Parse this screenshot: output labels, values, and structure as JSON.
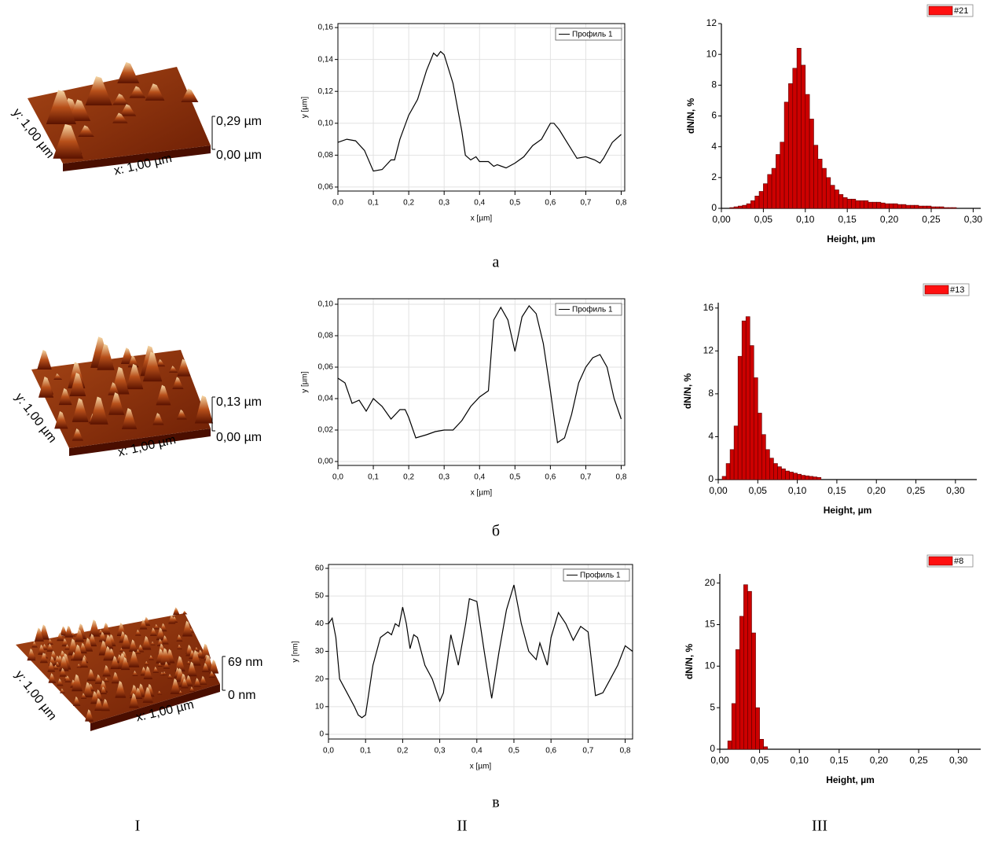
{
  "chart_data": [
    {
      "type": "line",
      "xlabel": "x [µm]",
      "ylabel": "y [µm]",
      "grid": true,
      "xlim": [
        0,
        0.81
      ],
      "ylim": [
        0.0575,
        0.1625
      ],
      "xticks": [
        {
          "value": 0,
          "label": "0,0"
        },
        {
          "value": 0.1,
          "label": "0,1"
        },
        {
          "value": 0.2,
          "label": "0,2"
        },
        {
          "value": 0.3,
          "label": "0,3"
        },
        {
          "value": 0.4,
          "label": "0,4"
        },
        {
          "value": 0.5,
          "label": "0,5"
        },
        {
          "value": 0.6,
          "label": "0,6"
        },
        {
          "value": 0.7,
          "label": "0,7"
        },
        {
          "value": 0.8,
          "label": "0,8"
        }
      ],
      "yticks": [
        {
          "value": 0.06,
          "label": "0,06"
        },
        {
          "value": 0.08,
          "label": "0,08"
        },
        {
          "value": 0.1,
          "label": "0,10"
        },
        {
          "value": 0.12,
          "label": "0,12"
        },
        {
          "value": 0.14,
          "label": "0,14"
        },
        {
          "value": 0.16,
          "label": "0,16"
        }
      ],
      "x": [
        0,
        0.025,
        0.05,
        0.075,
        0.1,
        0.125,
        0.15,
        0.16,
        0.175,
        0.2,
        0.225,
        0.25,
        0.27,
        0.28,
        0.29,
        0.3,
        0.325,
        0.35,
        0.36,
        0.375,
        0.39,
        0.4,
        0.425,
        0.44,
        0.45,
        0.475,
        0.5,
        0.525,
        0.55,
        0.575,
        0.6,
        0.61,
        0.625,
        0.65,
        0.675,
        0.7,
        0.725,
        0.74,
        0.75,
        0.775,
        0.8
      ],
      "series": [
        {
          "name": "Профиль 1",
          "color": "#000000",
          "values": [
            0.088,
            0.09,
            0.089,
            0.083,
            0.07,
            0.071,
            0.077,
            0.077,
            0.09,
            0.105,
            0.115,
            0.133,
            0.144,
            0.142,
            0.145,
            0.143,
            0.125,
            0.095,
            0.08,
            0.077,
            0.079,
            0.076,
            0.076,
            0.073,
            0.074,
            0.072,
            0.075,
            0.079,
            0.086,
            0.09,
            0.1,
            0.1,
            0.096,
            0.087,
            0.078,
            0.079,
            0.077,
            0.075,
            0.078,
            0.088,
            0.093
          ]
        }
      ]
    },
    {
      "type": "line",
      "xlabel": "x [µm]",
      "ylabel": "y [µm]",
      "grid": true,
      "xlim": [
        0,
        0.81
      ],
      "ylim": [
        -0.0025,
        0.1035
      ],
      "xticks": [
        {
          "value": 0,
          "label": "0,0"
        },
        {
          "value": 0.1,
          "label": "0,1"
        },
        {
          "value": 0.2,
          "label": "0,2"
        },
        {
          "value": 0.3,
          "label": "0,3"
        },
        {
          "value": 0.4,
          "label": "0,4"
        },
        {
          "value": 0.5,
          "label": "0,5"
        },
        {
          "value": 0.6,
          "label": "0,6"
        },
        {
          "value": 0.7,
          "label": "0,7"
        },
        {
          "value": 0.8,
          "label": "0,8"
        }
      ],
      "yticks": [
        {
          "value": 0,
          "label": "0,00"
        },
        {
          "value": 0.02,
          "label": "0,02"
        },
        {
          "value": 0.04,
          "label": "0,04"
        },
        {
          "value": 0.06,
          "label": "0,06"
        },
        {
          "value": 0.08,
          "label": "0,08"
        },
        {
          "value": 0.1,
          "label": "0,10"
        }
      ],
      "x": [
        0,
        0.02,
        0.04,
        0.06,
        0.08,
        0.1,
        0.125,
        0.15,
        0.175,
        0.19,
        0.2,
        0.22,
        0.25,
        0.275,
        0.3,
        0.325,
        0.35,
        0.375,
        0.4,
        0.425,
        0.44,
        0.46,
        0.48,
        0.5,
        0.52,
        0.54,
        0.56,
        0.58,
        0.6,
        0.62,
        0.64,
        0.66,
        0.68,
        0.7,
        0.72,
        0.74,
        0.76,
        0.78,
        0.8
      ],
      "series": [
        {
          "name": "Профиль 1",
          "color": "#000000",
          "values": [
            0.053,
            0.05,
            0.037,
            0.039,
            0.032,
            0.04,
            0.035,
            0.027,
            0.033,
            0.033,
            0.028,
            0.015,
            0.017,
            0.019,
            0.02,
            0.02,
            0.026,
            0.035,
            0.041,
            0.045,
            0.09,
            0.098,
            0.09,
            0.07,
            0.092,
            0.099,
            0.094,
            0.075,
            0.045,
            0.012,
            0.015,
            0.03,
            0.05,
            0.06,
            0.066,
            0.068,
            0.06,
            0.04,
            0.027
          ]
        }
      ]
    },
    {
      "type": "line",
      "xlabel": "x [µm]",
      "ylabel": "y [nm]",
      "grid": true,
      "xlim": [
        0,
        0.82
      ],
      "ylim": [
        -1.7,
        61.4
      ],
      "xticks": [
        {
          "value": 0,
          "label": "0,0"
        },
        {
          "value": 0.1,
          "label": "0,1"
        },
        {
          "value": 0.2,
          "label": "0,2"
        },
        {
          "value": 0.3,
          "label": "0,3"
        },
        {
          "value": 0.4,
          "label": "0,4"
        },
        {
          "value": 0.5,
          "label": "0,5"
        },
        {
          "value": 0.6,
          "label": "0,6"
        },
        {
          "value": 0.7,
          "label": "0,7"
        },
        {
          "value": 0.8,
          "label": "0,8"
        }
      ],
      "yticks": [
        0,
        10,
        20,
        30,
        40,
        50,
        60
      ],
      "x": [
        0,
        0.01,
        0.02,
        0.03,
        0.05,
        0.07,
        0.08,
        0.09,
        0.1,
        0.12,
        0.14,
        0.16,
        0.17,
        0.18,
        0.19,
        0.2,
        0.21,
        0.22,
        0.23,
        0.24,
        0.26,
        0.28,
        0.3,
        0.31,
        0.33,
        0.35,
        0.37,
        0.38,
        0.4,
        0.42,
        0.44,
        0.46,
        0.48,
        0.5,
        0.52,
        0.54,
        0.56,
        0.57,
        0.59,
        0.6,
        0.62,
        0.64,
        0.66,
        0.68,
        0.7,
        0.72,
        0.74,
        0.76,
        0.78,
        0.8,
        0.82
      ],
      "series": [
        {
          "name": "Профиль 1",
          "color": "#000000",
          "values": [
            40,
            42,
            35,
            20,
            15,
            10,
            7,
            6,
            7,
            25,
            35,
            37,
            36,
            40,
            39,
            46,
            40,
            31,
            36,
            35,
            25,
            20,
            12,
            15,
            36,
            25,
            40,
            49,
            48,
            30,
            13,
            30,
            45,
            54,
            40,
            30,
            27,
            33,
            25,
            35,
            44,
            40,
            34,
            39,
            37,
            14,
            15,
            20,
            25,
            32,
            30
          ]
        }
      ]
    },
    {
      "type": "histogram",
      "xlabel": "Height, µm",
      "ylabel": "dN/N, %",
      "xlim": [
        0,
        0.309
      ],
      "ylim": [
        0,
        12
      ],
      "xticks": [
        {
          "value": 0,
          "label": "0,00"
        },
        {
          "value": 0.05,
          "label": "0,05"
        },
        {
          "value": 0.1,
          "label": "0,10"
        },
        {
          "value": 0.15,
          "label": "0,15"
        },
        {
          "value": 0.2,
          "label": "0,20"
        },
        {
          "value": 0.25,
          "label": "0,25"
        },
        {
          "value": 0.3,
          "label": "0,30"
        }
      ],
      "yticks": [
        0,
        2,
        4,
        6,
        8,
        10,
        12
      ],
      "bins": [
        0.01,
        0.015,
        0.02,
        0.025,
        0.03,
        0.035,
        0.04,
        0.045,
        0.05,
        0.055,
        0.06,
        0.065,
        0.07,
        0.075,
        0.08,
        0.085,
        0.09,
        0.095,
        0.1,
        0.105,
        0.11,
        0.115,
        0.12,
        0.125,
        0.13,
        0.135,
        0.14,
        0.145,
        0.15,
        0.155,
        0.16,
        0.165,
        0.17,
        0.175,
        0.18,
        0.185,
        0.19,
        0.195,
        0.2,
        0.205,
        0.21,
        0.215,
        0.22,
        0.225,
        0.23,
        0.235,
        0.24,
        0.245,
        0.25,
        0.255,
        0.26,
        0.265,
        0.27,
        0.275,
        0.28
      ],
      "series": [
        {
          "name": "#21",
          "color": "#cc0000",
          "values": [
            0.05,
            0.1,
            0.15,
            0.2,
            0.3,
            0.5,
            0.8,
            1.1,
            1.6,
            2.2,
            2.6,
            3.5,
            4.3,
            6.9,
            8.1,
            9.1,
            10.4,
            9.3,
            7.4,
            5.8,
            4.1,
            3.2,
            2.6,
            2.0,
            1.5,
            1.2,
            0.9,
            0.7,
            0.6,
            0.6,
            0.5,
            0.5,
            0.5,
            0.4,
            0.4,
            0.4,
            0.35,
            0.3,
            0.3,
            0.3,
            0.25,
            0.25,
            0.2,
            0.2,
            0.2,
            0.15,
            0.15,
            0.15,
            0.1,
            0.1,
            0.1,
            0.05,
            0.05,
            0.05
          ]
        }
      ]
    },
    {
      "type": "histogram",
      "xlabel": "Height, µm",
      "ylabel": "dN/N, %",
      "xlim": [
        0,
        0.327
      ],
      "ylim": [
        0,
        16.5
      ],
      "xticks": [
        {
          "value": 0,
          "label": "0,00"
        },
        {
          "value": 0.05,
          "label": "0,05"
        },
        {
          "value": 0.1,
          "label": "0,10"
        },
        {
          "value": 0.15,
          "label": "0,15"
        },
        {
          "value": 0.2,
          "label": "0,20"
        },
        {
          "value": 0.25,
          "label": "0,25"
        },
        {
          "value": 0.3,
          "label": "0,30"
        }
      ],
      "yticks": [
        0,
        4,
        8,
        12,
        16
      ],
      "bins": [
        0.005,
        0.01,
        0.015,
        0.02,
        0.025,
        0.03,
        0.035,
        0.04,
        0.045,
        0.05,
        0.055,
        0.06,
        0.065,
        0.07,
        0.075,
        0.08,
        0.085,
        0.09,
        0.095,
        0.1,
        0.105,
        0.11,
        0.115,
        0.12,
        0.125,
        0.13
      ],
      "series": [
        {
          "name": "#13",
          "color": "#cc0000",
          "values": [
            0.3,
            1.5,
            2.8,
            5.0,
            11.5,
            14.8,
            15.2,
            12.5,
            9.5,
            6.2,
            4.2,
            2.8,
            2.0,
            1.5,
            1.2,
            1.0,
            0.8,
            0.7,
            0.6,
            0.5,
            0.4,
            0.35,
            0.3,
            0.25,
            0.2
          ]
        }
      ]
    },
    {
      "type": "histogram",
      "xlabel": "Height, µm",
      "ylabel": "dN/N, %",
      "xlim": [
        0,
        0.328
      ],
      "ylim": [
        0,
        21.1
      ],
      "xticks": [
        {
          "value": 0,
          "label": "0,00"
        },
        {
          "value": 0.05,
          "label": "0,05"
        },
        {
          "value": 0.1,
          "label": "0,10"
        },
        {
          "value": 0.15,
          "label": "0,15"
        },
        {
          "value": 0.2,
          "label": "0,20"
        },
        {
          "value": 0.25,
          "label": "0,25"
        },
        {
          "value": 0.3,
          "label": "0,30"
        }
      ],
      "yticks": [
        0,
        5,
        10,
        15,
        20
      ],
      "bins": [
        0.01,
        0.015,
        0.02,
        0.025,
        0.03,
        0.035,
        0.04,
        0.045,
        0.05,
        0.055,
        0.06
      ],
      "series": [
        {
          "name": "#8",
          "color": "#cc0000",
          "values": [
            1.0,
            5.5,
            12.0,
            16.0,
            19.8,
            19.0,
            14.0,
            5.0,
            1.2,
            0.3
          ]
        }
      ]
    }
  ],
  "surfaces": [
    {
      "z_top": "0,29 µm",
      "z_bottom": "0,00 µm",
      "y_axis": "y: 1,00 µm",
      "x_axis": "x: 1,00 µm"
    },
    {
      "z_top": "0,13 µm",
      "z_bottom": "0,00 µm",
      "y_axis": "y: 1,00 µm",
      "x_axis": "x: 1,00 µm"
    },
    {
      "z_top": "69 nm",
      "z_bottom": "0 nm",
      "y_axis": "y: 1,00 µm",
      "x_axis": "x: 1,00 µm"
    }
  ],
  "row_labels": [
    "а",
    "б",
    "в"
  ],
  "column_labels": [
    "I",
    "II",
    "III"
  ]
}
